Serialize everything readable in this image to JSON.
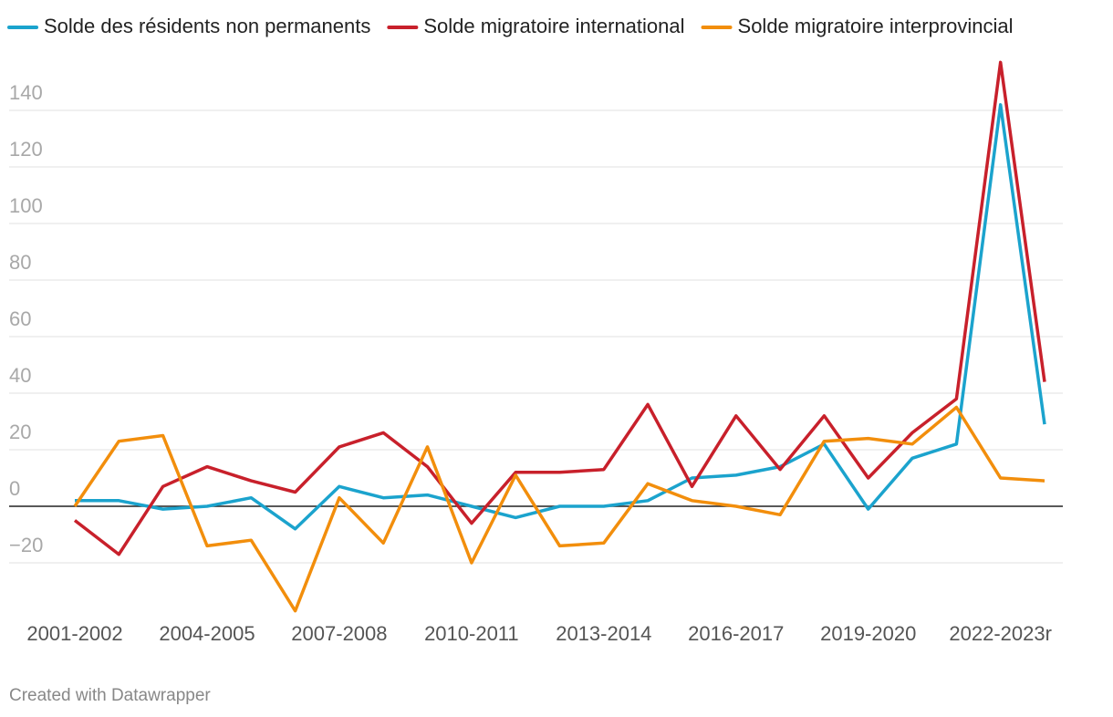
{
  "chart_data": {
    "type": "line",
    "categories": [
      "2001-2002",
      null,
      null,
      "2004-2005",
      null,
      null,
      "2007-2008",
      null,
      null,
      "2010-2011",
      null,
      null,
      "2013-2014",
      null,
      null,
      "2016-2017",
      null,
      null,
      "2019-2020",
      null,
      null,
      "2022-2023r",
      null
    ],
    "series": [
      {
        "name": "Solde des résidents non permanents",
        "color": "#1ba3cd",
        "values": [
          2,
          2,
          -1,
          0,
          3,
          -8,
          7,
          3,
          4,
          0,
          -4,
          0,
          0,
          2,
          10,
          11,
          14,
          22,
          -1,
          17,
          22,
          142,
          29
        ]
      },
      {
        "name": "Solde migratoire international",
        "color": "#c8202b",
        "values": [
          -5,
          -17,
          7,
          14,
          9,
          5,
          21,
          26,
          14,
          -6,
          12,
          12,
          13,
          36,
          7,
          32,
          13,
          32,
          10,
          26,
          38,
          157,
          44
        ]
      },
      {
        "name": "Solde migratoire interprovincial",
        "color": "#f28e0c",
        "values": [
          0,
          23,
          25,
          -14,
          -12,
          -37,
          3,
          -13,
          21,
          -20,
          11,
          -14,
          -13,
          8,
          2,
          0,
          -3,
          23,
          24,
          22,
          35,
          10,
          9
        ]
      }
    ],
    "ylim": [
      -40,
      160
    ],
    "yticks": [
      {
        "value": -20,
        "label": "−20"
      },
      0,
      20,
      40,
      60,
      80,
      100,
      120,
      140
    ],
    "grid": true,
    "legend": "top",
    "footer": "Created with Datawrapper"
  }
}
